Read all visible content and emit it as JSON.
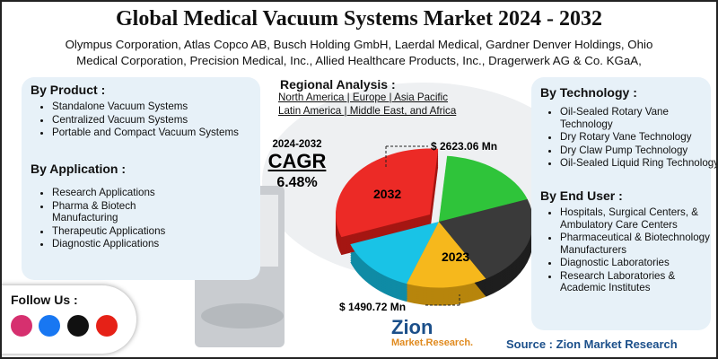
{
  "header": {
    "title": "Global Medical Vacuum Systems Market 2024 - 2032",
    "companies": [
      "Olympus Corporation, Atlas Copco AB, Busch Holding GmbH, Laerdal Medical, Gardner Denver Holdings, Ohio",
      "Medical Corporation, Precision Medical, Inc., Allied Healthcare Products, Inc., Dragerwerk AG & Co. KGaA,"
    ]
  },
  "by_product": {
    "heading": "By Product :",
    "items": [
      "Standalone Vacuum Systems",
      "Centralized Vacuum Systems",
      "Portable and Compact Vacuum Systems"
    ]
  },
  "by_application": {
    "heading": "By Application :",
    "items": [
      "Research Applications",
      "Pharma & Biotech Manufacturing",
      "Therapeutic Applications",
      "Diagnostic Applications"
    ]
  },
  "regional": {
    "heading": "Regional Analysis :",
    "lines": [
      "North America | Europe | Asia Pacific",
      "Latin America | Middle East, and Africa"
    ]
  },
  "cagr": {
    "period": "2024-2032",
    "label": "CAGR",
    "value": "6.48%"
  },
  "pie": {
    "label_2032": "2032",
    "label_2023": "2023",
    "value_2032": "$ 2623.06 Mn",
    "value_2023": "$ 1490.72 Mn"
  },
  "by_technology": {
    "heading": "By Technology :",
    "items": [
      "Oil-Sealed Rotary Vane Technology",
      "Dry Rotary Vane Technology",
      "Dry Claw Pump Technology",
      "Oil-Sealed Liquid Ring Technology"
    ]
  },
  "by_end_user": {
    "heading": "By End User :",
    "items": [
      "Hospitals, Surgical Centers, & Ambulatory Care Centers",
      "Pharmaceutical & Biotechnology Manufacturers",
      "Diagnostic Laboratories",
      "Research Laboratories & Academic Institutes"
    ]
  },
  "follow": {
    "label": "Follow Us :"
  },
  "logo": {
    "name": "Zion",
    "sub": "Market.Research."
  },
  "source": "Source : Zion Market Research"
}
